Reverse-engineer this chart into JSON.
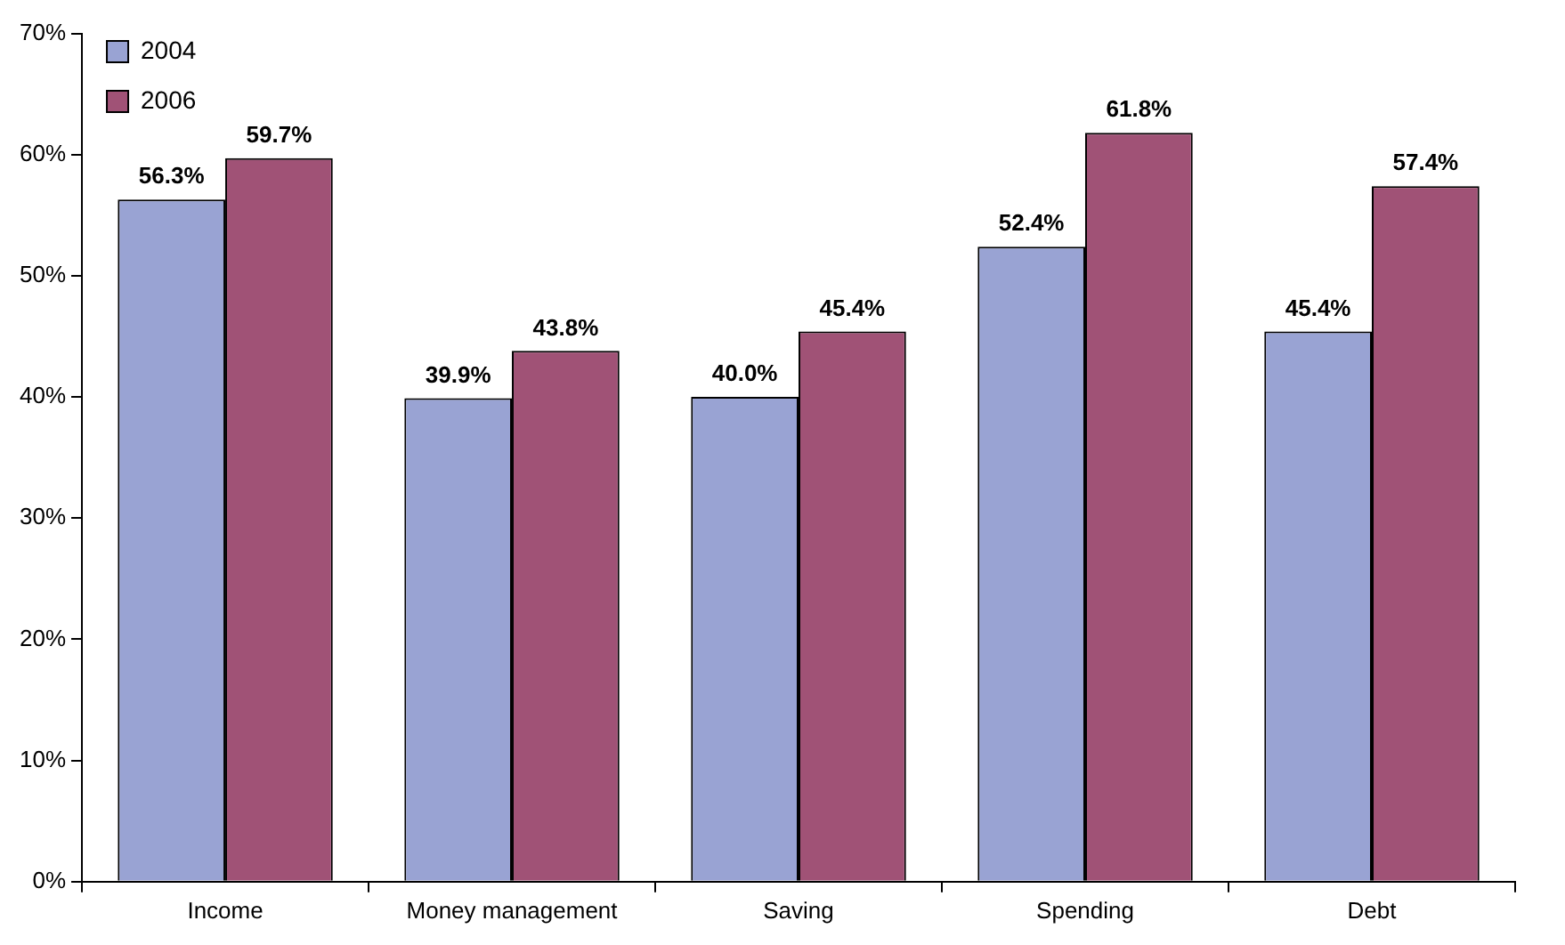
{
  "chart_data": {
    "type": "bar",
    "categories": [
      "Income",
      "Money management",
      "Saving",
      "Spending",
      "Debt"
    ],
    "series": [
      {
        "name": "2004",
        "color": "#99a3d3",
        "values": [
          56.3,
          39.9,
          40.0,
          52.4,
          45.4
        ],
        "value_labels": [
          "56.3%",
          "39.9%",
          "40.0%",
          "52.4%",
          "45.4%"
        ]
      },
      {
        "name": "2006",
        "color": "#a05276",
        "values": [
          59.7,
          43.8,
          45.4,
          61.8,
          57.4
        ],
        "value_labels": [
          "59.7%",
          "43.8%",
          "45.4%",
          "61.8%",
          "57.4%"
        ]
      }
    ],
    "ylim": [
      0,
      70
    ],
    "yticks": [
      {
        "value": 0,
        "label": "0%"
      },
      {
        "value": 10,
        "label": "10%"
      },
      {
        "value": 20,
        "label": "20%"
      },
      {
        "value": 30,
        "label": "30%"
      },
      {
        "value": 40,
        "label": "40%"
      },
      {
        "value": 50,
        "label": "50%"
      },
      {
        "value": 60,
        "label": "60%"
      },
      {
        "value": 70,
        "label": "70%"
      }
    ],
    "grid": false,
    "legend": "top left"
  }
}
